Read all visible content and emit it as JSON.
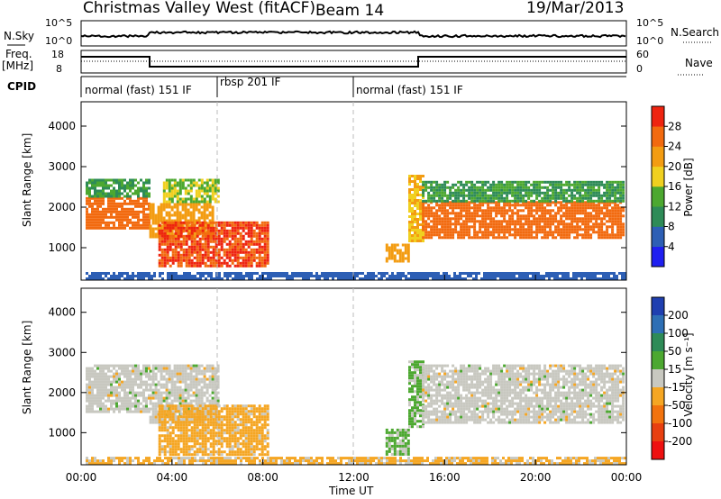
{
  "header": {
    "station": "Christmas Valley West (fitACF)",
    "beam": "Beam 14",
    "date": "19/Mar/2013"
  },
  "status_panels": {
    "nsky_label": "N.Sky",
    "nsky_ticks": [
      "10^5",
      "10^0"
    ],
    "nsearch_label": "N.Search",
    "nsearch_ticks": [
      "10^5",
      "10^0"
    ],
    "freq_label": "Freq.",
    "freq_unit": "[MHz]",
    "freq_ticks": [
      "18",
      "8"
    ],
    "nave_label": "Nave",
    "nave_ticks": [
      "60",
      "0"
    ],
    "cpid_label": "CPID"
  },
  "cpid_segments": [
    {
      "label": "normal (fast) 151 IF",
      "start": 0,
      "end": 6
    },
    {
      "label": "rbsp 201 IF",
      "start": 6,
      "end": 12
    },
    {
      "label": "normal (fast) 151 IF",
      "start": 12,
      "end": 24
    }
  ],
  "chart_data": [
    {
      "type": "heatmap",
      "name": "power",
      "x_range": [
        0,
        24
      ],
      "y_range": [
        200,
        4600
      ],
      "ylabel": "Slant Range [km]",
      "yticks": [
        1000,
        2000,
        3000,
        4000
      ],
      "colorbar": {
        "label": "Power [dB]",
        "ticks": [
          "4",
          "8",
          "12",
          "16",
          "20",
          "24",
          "28"
        ],
        "colors": [
          "#1f1ff0",
          "#2d5fb5",
          "#2e8b57",
          "#4ca830",
          "#f0d020",
          "#f39c12",
          "#f26a0f",
          "#ee2410"
        ],
        "range": [
          0,
          32
        ]
      },
      "regions": [
        {
          "t0": 0.2,
          "t1": 3.0,
          "r0": 1500,
          "r1": 2250,
          "value": 26
        },
        {
          "t0": 0.2,
          "t1": 3.0,
          "r0": 2250,
          "r1": 2700,
          "value": 12
        },
        {
          "t0": 3.0,
          "t1": 5.8,
          "r0": 1250,
          "r1": 2100,
          "value": 22
        },
        {
          "t0": 3.6,
          "t1": 6.0,
          "r0": 2100,
          "r1": 2700,
          "value": 16
        },
        {
          "t0": 3.4,
          "t1": 8.2,
          "r0": 580,
          "r1": 1650,
          "value": 28
        },
        {
          "t0": 13.4,
          "t1": 14.4,
          "r0": 650,
          "r1": 1100,
          "value": 22
        },
        {
          "t0": 14.4,
          "t1": 15.0,
          "r0": 1150,
          "r1": 2800,
          "value": 20
        },
        {
          "t0": 15.0,
          "t1": 23.9,
          "r0": 1250,
          "r1": 2150,
          "value": 26
        },
        {
          "t0": 15.0,
          "t1": 23.9,
          "r0": 2150,
          "r1": 2650,
          "value": 12
        },
        {
          "t0": 0.2,
          "t1": 23.9,
          "r0": 260,
          "r1": 400,
          "value": 6
        }
      ]
    },
    {
      "type": "heatmap",
      "name": "velocity",
      "x_range": [
        0,
        24
      ],
      "y_range": [
        200,
        4600
      ],
      "xlabel": "Time UT",
      "ylabel": "Slant Range [km]",
      "xticks": [
        "00:00",
        "04:00",
        "08:00",
        "12:00",
        "16:00",
        "20:00",
        "00:00"
      ],
      "yticks": [
        1000,
        2000,
        3000,
        4000
      ],
      "colorbar": {
        "label": "Velocity [m s⁻¹]",
        "ticks": [
          "200",
          "100",
          "50",
          "15",
          "-15",
          "-50",
          "-100",
          "-200"
        ],
        "colors": [
          "#1f3fb0",
          "#2e6fb5",
          "#2e8b57",
          "#4ca830",
          "#c8c8c0",
          "#f5a623",
          "#f2730e",
          "#e84010",
          "#ee1010"
        ],
        "range": [
          -250,
          250
        ]
      },
      "regions": [
        {
          "t0": 0.2,
          "t1": 3.0,
          "r0": 1500,
          "r1": 2700,
          "value": 0
        },
        {
          "t0": 3.0,
          "t1": 6.0,
          "r0": 1250,
          "r1": 2700,
          "value": 0
        },
        {
          "t0": 3.4,
          "t1": 8.2,
          "r0": 450,
          "r1": 1700,
          "value": -50
        },
        {
          "t0": 13.4,
          "t1": 14.4,
          "r0": 450,
          "r1": 1100,
          "value": 40
        },
        {
          "t0": 14.4,
          "t1": 15.0,
          "r0": 1150,
          "r1": 2800,
          "value": 40
        },
        {
          "t0": 15.0,
          "t1": 23.9,
          "r0": 1250,
          "r1": 2700,
          "value": 0
        },
        {
          "t0": 0.2,
          "t1": 23.9,
          "r0": 260,
          "r1": 400,
          "value": -40
        }
      ]
    }
  ]
}
